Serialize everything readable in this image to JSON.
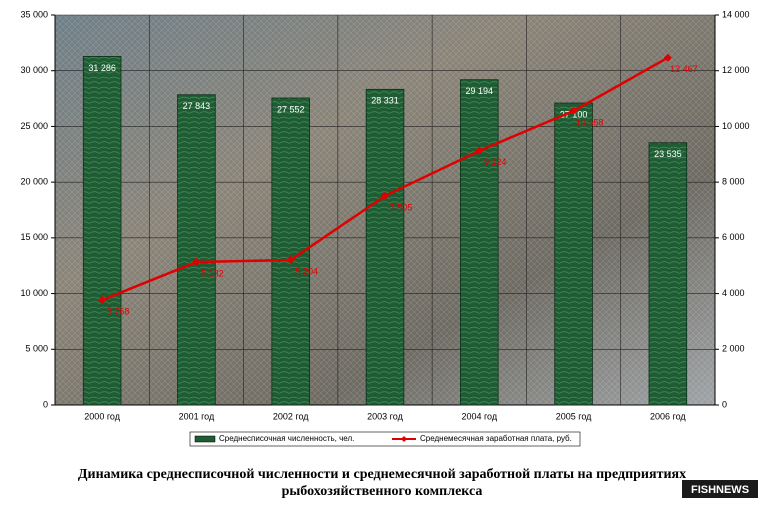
{
  "chart_data": {
    "type": "bar",
    "title": [
      "Динамика среднесписочной численности и среднемесячной заработной платы на предприятиях",
      "рыбохозяйственного комплекса"
    ],
    "categories": [
      "2000 год",
      "2001 год",
      "2002 год",
      "2003 год",
      "2004 год",
      "2005 год",
      "2006 год"
    ],
    "series": [
      {
        "name": "Среднесписочная численность, чел.",
        "type": "bar",
        "color": "#1f5c34",
        "values": [
          31286,
          27843,
          27552,
          28331,
          29194,
          27100,
          23535
        ],
        "value_labels": [
          "31 286",
          "27 843",
          "27 552",
          "28 331",
          "29 194",
          "27 100",
          "23 535"
        ]
      },
      {
        "name": "Среднемесячная заработная плата, руб.",
        "type": "line",
        "axis": "y2",
        "color": "#e00000",
        "values": [
          3768,
          5132,
          5204,
          7505,
          9124,
          10558,
          12467
        ],
        "value_labels": [
          "3 768",
          "5 132",
          "5 204",
          "7 505",
          "9 124",
          "10 558",
          "12 467"
        ]
      }
    ],
    "ylim": [
      0,
      35000
    ],
    "yticks": [
      0,
      {
        "value": 5000,
        "label": "5 000"
      },
      {
        "value": 10000,
        "label": "10 000"
      },
      {
        "value": 15000,
        "label": "15 000"
      },
      {
        "value": 20000,
        "label": "20 000"
      },
      {
        "value": 25000,
        "label": "25 000"
      },
      {
        "value": 30000,
        "label": "30 000"
      },
      {
        "value": 35000,
        "label": "35 000"
      }
    ],
    "y2lim": [
      0,
      14000
    ],
    "y2ticks": [
      0,
      {
        "value": 2000,
        "label": "2 000"
      },
      {
        "value": 4000,
        "label": "4 000"
      },
      {
        "value": 6000,
        "label": "6 000"
      },
      {
        "value": 8000,
        "label": "8 000"
      },
      {
        "value": 10000,
        "label": "10 000"
      },
      {
        "value": 12000,
        "label": "12 000"
      },
      {
        "value": 14000,
        "label": "14 000"
      }
    ],
    "grid": true,
    "legend": "bottom"
  },
  "logo": "FISHNEWS"
}
